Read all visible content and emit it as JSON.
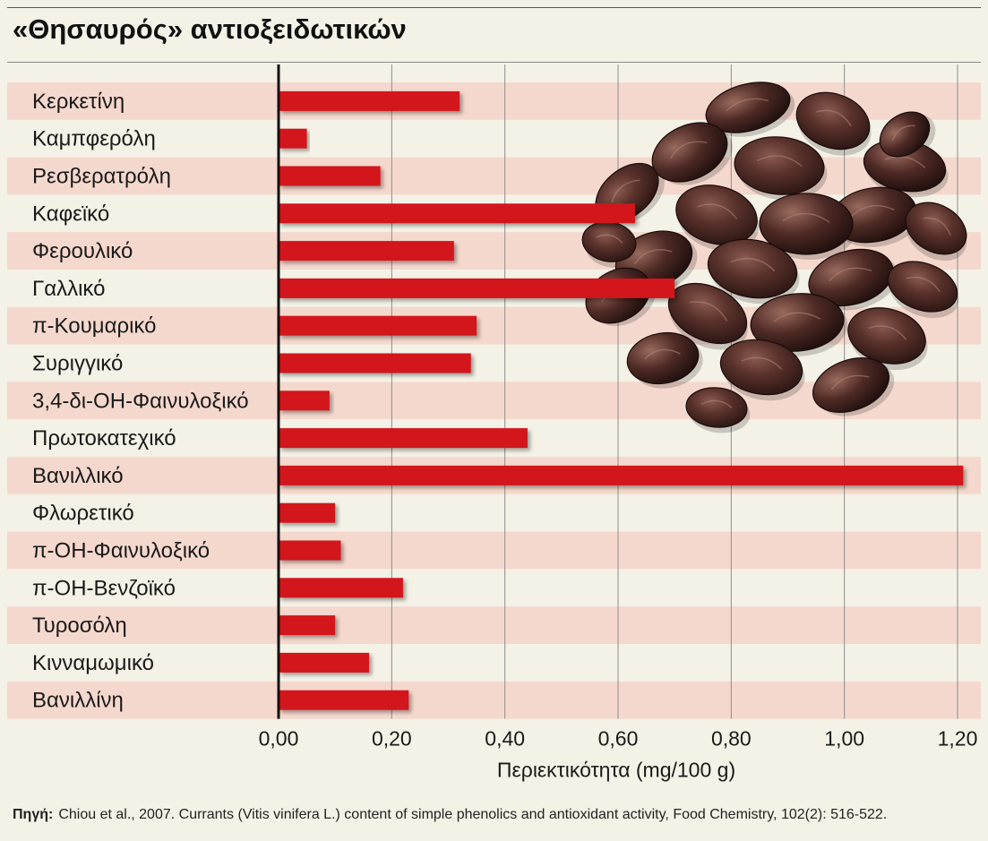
{
  "header": {
    "title": "«Θησαυρός» αντιοξειδωτικών"
  },
  "footer": {
    "source_label": "Πηγή:",
    "source_text": "Chiou et al., 2007. Currants (Vitis vinifera L.) content of simple phenolics and antioxidant activity, Food Chemistry, 102(2): 516-522."
  },
  "chart_data": {
    "type": "bar",
    "orientation": "horizontal",
    "title": "«Θησαυρός» αντιοξειδωτικών",
    "xlabel": "Περιεκτικότητα (mg/100 g)",
    "ylabel": "",
    "xlim": [
      0,
      1.2
    ],
    "xticks": [
      "0,00",
      "0,20",
      "0,40",
      "0,60",
      "0,80",
      "1,00",
      "1,20"
    ],
    "grid": true,
    "bar_color": "#d2141b",
    "row_colors": [
      "#f5d8cd",
      "#f4f1e6"
    ],
    "categories": [
      "Κερκετίνη",
      "Καμπφερόλη",
      "Ρεσβερατρόλη",
      "Καφεϊκό",
      "Φερουλικό",
      "Γαλλικό",
      "π-Κουμαρικό",
      "Συριγγικό",
      "3,4-δι-ΟΗ-Φαινυλοξικό",
      "Πρωτοκατεχικό",
      "Βανιλλικό",
      "Φλωρετικό",
      "π-ΟΗ-Φαινυλοξικό",
      "π-ΟΗ-Βενζοϊκό",
      "Τυροσόλη",
      "Κινναμωμικό",
      "Βανιλλίνη"
    ],
    "values": [
      0.32,
      0.05,
      0.18,
      0.63,
      0.31,
      0.7,
      0.35,
      0.34,
      0.09,
      0.44,
      1.21,
      0.1,
      0.11,
      0.22,
      0.1,
      0.16,
      0.23
    ]
  }
}
